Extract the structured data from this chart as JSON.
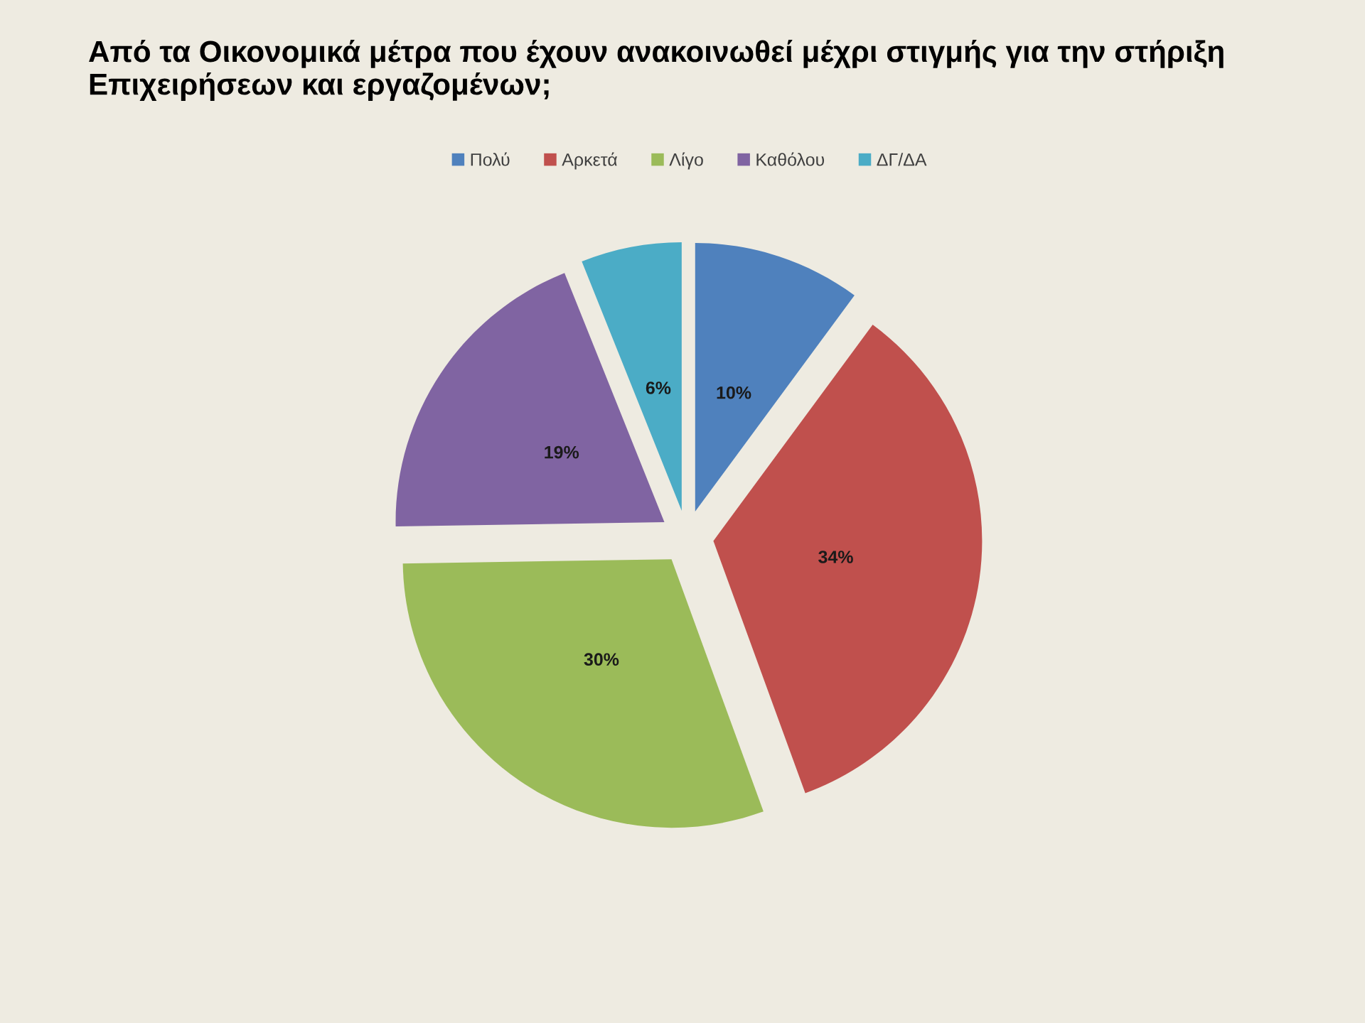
{
  "chart_data": {
    "type": "pie",
    "title": "Από τα Οικονομικά μέτρα που έχουν ανακοινωθεί μέχρι στιγμής για την στήριξη Επιχειρήσεων και εργαζομένων;",
    "categories": [
      "Πολύ",
      "Αρκετά",
      "Λίγο",
      "Καθόλου",
      "ΔΓ/ΔΑ"
    ],
    "values": [
      10,
      34,
      30,
      19,
      6
    ],
    "colors": [
      "#4f81bd",
      "#c0504d",
      "#9bbb59",
      "#8064a2",
      "#4bacc6"
    ],
    "value_labels": [
      "10%",
      "34%",
      "30%",
      "19%",
      "6%"
    ],
    "legend": "top"
  }
}
